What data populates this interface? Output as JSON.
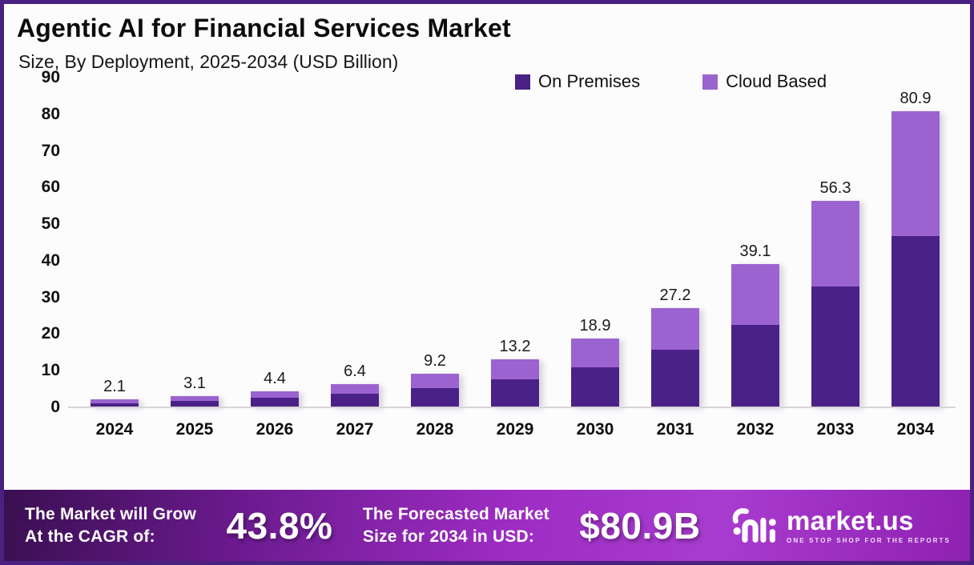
{
  "header": {
    "title": "Agentic AI for Financial Services Market",
    "subtitle": "Size, By Deployment, 2025-2034 (USD Billion)"
  },
  "chart_data": {
    "type": "bar",
    "stacked": true,
    "title": "Agentic AI for Financial Services Market Size, By Deployment, 2025-2034 (USD Billion)",
    "categories": [
      "2024",
      "2025",
      "2026",
      "2027",
      "2028",
      "2029",
      "2030",
      "2031",
      "2032",
      "2033",
      "2034"
    ],
    "series": [
      {
        "name": "On Premises",
        "color": "#4A2187",
        "values": [
          1.2,
          1.8,
          2.6,
          3.7,
          5.3,
          7.6,
          11.0,
          15.8,
          22.6,
          32.9,
          46.8
        ]
      },
      {
        "name": "Cloud Based",
        "color": "#9B63CF",
        "values": [
          0.9,
          1.3,
          1.8,
          2.7,
          3.9,
          5.6,
          7.9,
          11.4,
          16.5,
          23.4,
          34.1
        ]
      }
    ],
    "totals": [
      "2.1",
      "3.1",
      "4.4",
      "6.4",
      "9.2",
      "13.2",
      "18.9",
      "27.2",
      "39.1",
      "56.3",
      "80.9"
    ],
    "xlabel": "",
    "ylabel": "",
    "ylim": [
      0,
      90
    ],
    "yticks": [
      0,
      10,
      20,
      30,
      40,
      50,
      60,
      70,
      80,
      90
    ],
    "grid": false,
    "legend_position": "top"
  },
  "legend": [
    {
      "label": "On Premises",
      "color": "#4A2187"
    },
    {
      "label": "Cloud Based",
      "color": "#9B63CF"
    }
  ],
  "banner": {
    "cagr_label_line1": "The Market will Grow",
    "cagr_label_line2": "At the CAGR of:",
    "cagr_value": "43.8%",
    "forecast_label_line1": "The Forecasted Market",
    "forecast_label_line2": "Size for 2034 in USD:",
    "forecast_value": "$80.9B",
    "logo_text": "market.us",
    "logo_tagline": "ONE STOP SHOP FOR THE REPORTS"
  },
  "colors": {
    "on_premises": "#4A2187",
    "cloud_based": "#9B63CF",
    "frame_border": "#4A2180",
    "banner_gradient": [
      "#3A0F51",
      "#6E1B92",
      "#9D2CC2",
      "#A93CD0",
      "#8E21B0"
    ]
  }
}
